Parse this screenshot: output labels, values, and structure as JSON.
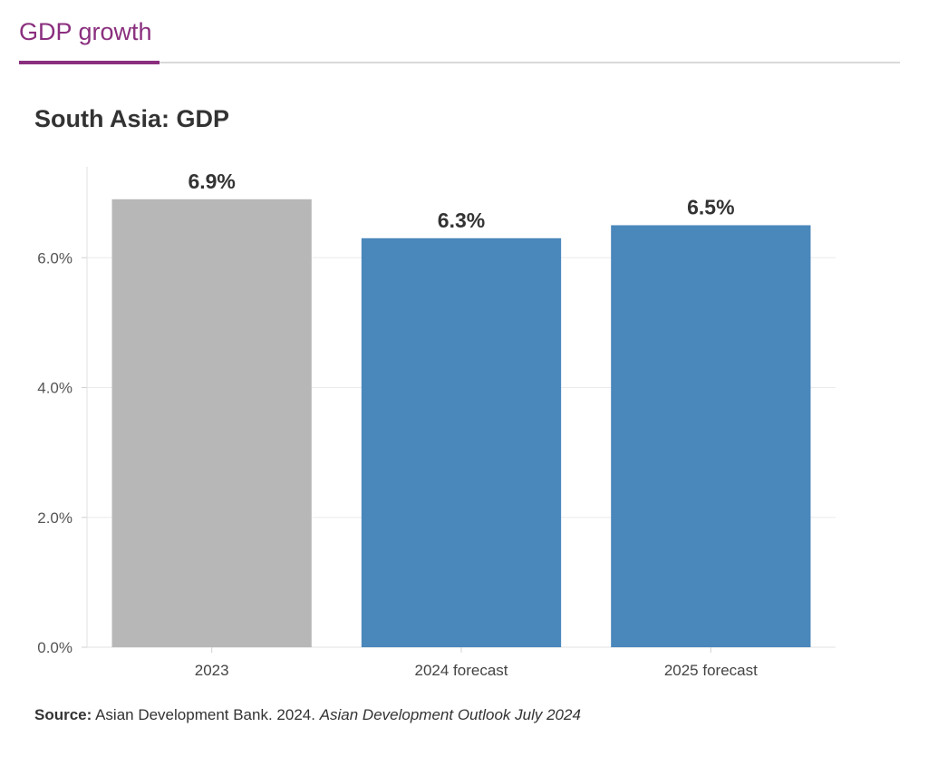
{
  "tab": {
    "label": "GDP growth",
    "color": "#8a2f7e"
  },
  "chart_data": {
    "type": "bar",
    "title": "South Asia: GDP",
    "categories": [
      "2023",
      "2024 forecast",
      "2025 forecast"
    ],
    "values": [
      6.9,
      6.3,
      6.5
    ],
    "data_labels": [
      "6.9%",
      "6.3%",
      "6.5%"
    ],
    "bar_colors": [
      "#b7b7b7",
      "#4a87bb",
      "#4a87bb"
    ],
    "yticks": [
      0,
      2,
      4,
      6
    ],
    "ytick_labels": [
      "0.0%",
      "2.0%",
      "4.0%",
      "6.0%"
    ],
    "ylim": [
      0,
      7.4
    ],
    "xlabel": "",
    "ylabel": "",
    "grid": true,
    "legend": "none"
  },
  "source": {
    "label": "Source:",
    "text": " Asian Development Bank. 2024. ",
    "publication": "Asian Development Outlook July 2024"
  }
}
